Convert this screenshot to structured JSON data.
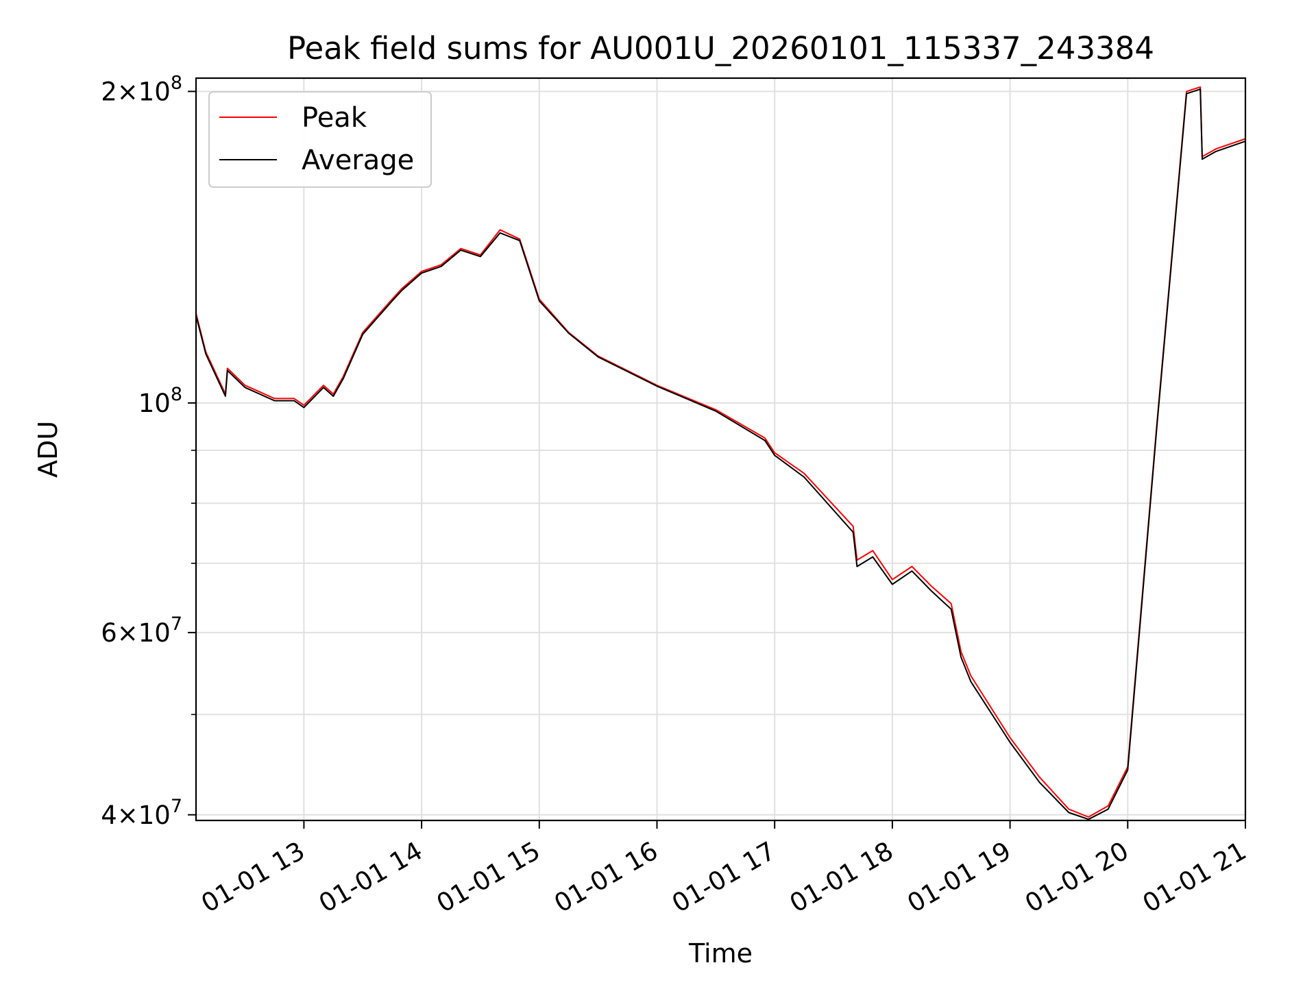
{
  "chart_data": {
    "type": "line",
    "title": "Peak field sums for AU001U_20260101_115337_243384",
    "xlabel": "Time",
    "ylabel": "ADU",
    "y_scale": "log",
    "x_range": [
      "2026-01-01 12:05",
      "2026-01-01 21:00"
    ],
    "ylim": [
      39500000,
      206000000
    ],
    "grid": true,
    "legend_position": "top-left",
    "x_tick_labels": [
      "01-01 13",
      "01-01 14",
      "01-01 15",
      "01-01 16",
      "01-01 17",
      "01-01 18",
      "01-01 19",
      "01-01 20",
      "01-01 21"
    ],
    "y_major_tick_labels": [
      {
        "value": 40000000,
        "mantissa": "4",
        "exponent": "7"
      },
      {
        "value": 60000000,
        "mantissa": "6",
        "exponent": "7"
      },
      {
        "value": 100000000,
        "mantissa": "",
        "exponent": "8"
      },
      {
        "value": 200000000,
        "mantissa": "2",
        "exponent": "8"
      }
    ],
    "y_minor_gridlines": [
      50000000,
      70000000,
      80000000,
      90000000
    ],
    "x": [
      "2026-01-01 12:05",
      "2026-01-01 12:10",
      "2026-01-01 12:20",
      "2026-01-01 12:21",
      "2026-01-01 12:30",
      "2026-01-01 12:45",
      "2026-01-01 12:55",
      "2026-01-01 13:00",
      "2026-01-01 13:10",
      "2026-01-01 13:15",
      "2026-01-01 13:20",
      "2026-01-01 13:30",
      "2026-01-01 13:45",
      "2026-01-01 13:50",
      "2026-01-01 14:00",
      "2026-01-01 14:10",
      "2026-01-01 14:20",
      "2026-01-01 14:30",
      "2026-01-01 14:40",
      "2026-01-01 14:50",
      "2026-01-01 15:00",
      "2026-01-01 15:15",
      "2026-01-01 15:30",
      "2026-01-01 16:00",
      "2026-01-01 16:30",
      "2026-01-01 16:55",
      "2026-01-01 17:00",
      "2026-01-01 17:15",
      "2026-01-01 17:40",
      "2026-01-01 17:42",
      "2026-01-01 17:50",
      "2026-01-01 18:00",
      "2026-01-01 18:10",
      "2026-01-01 18:20",
      "2026-01-01 18:30",
      "2026-01-01 18:35",
      "2026-01-01 18:40",
      "2026-01-01 19:00",
      "2026-01-01 19:15",
      "2026-01-01 19:30",
      "2026-01-01 19:40",
      "2026-01-01 19:50",
      "2026-01-01 20:00",
      "2026-01-01 20:15",
      "2026-01-01 20:30",
      "2026-01-01 20:37",
      "2026-01-01 20:38",
      "2026-01-01 20:45",
      "2026-01-01 21:00"
    ],
    "series": [
      {
        "name": "Peak",
        "color": "#ff0000",
        "values": [
          122000000,
          112000000,
          102000000,
          108000000,
          104000000,
          101000000,
          101000000,
          99500000,
          104000000,
          102000000,
          106000000,
          117000000,
          126000000,
          129000000,
          134000000,
          136000000,
          141000000,
          139000000,
          147000000,
          144000000,
          126000000,
          117000000,
          111000000,
          104000000,
          98500000,
          92500000,
          89500000,
          85500000,
          76000000,
          70500000,
          72000000,
          67500000,
          69500000,
          66500000,
          64000000,
          57500000,
          54500000,
          47500000,
          43500000,
          40500000,
          39800000,
          40800000,
          44500000,
          96000000,
          200000000,
          202000000,
          173000000,
          176000000,
          180000000
        ]
      },
      {
        "name": "Average",
        "color": "#000000",
        "values": [
          121500000,
          111500000,
          101500000,
          107500000,
          103500000,
          100500000,
          100500000,
          99000000,
          103500000,
          101500000,
          105500000,
          116500000,
          125500000,
          128500000,
          133500000,
          135500000,
          140500000,
          138500000,
          146000000,
          143500000,
          125500000,
          116800000,
          110800000,
          103800000,
          98200000,
          92000000,
          89000000,
          84800000,
          75000000,
          69500000,
          71000000,
          66800000,
          68800000,
          65800000,
          63200000,
          56800000,
          53800000,
          47000000,
          43000000,
          40200000,
          39600000,
          40500000,
          44200000,
          95500000,
          199000000,
          201000000,
          172000000,
          175000000,
          179000000
        ]
      }
    ]
  }
}
